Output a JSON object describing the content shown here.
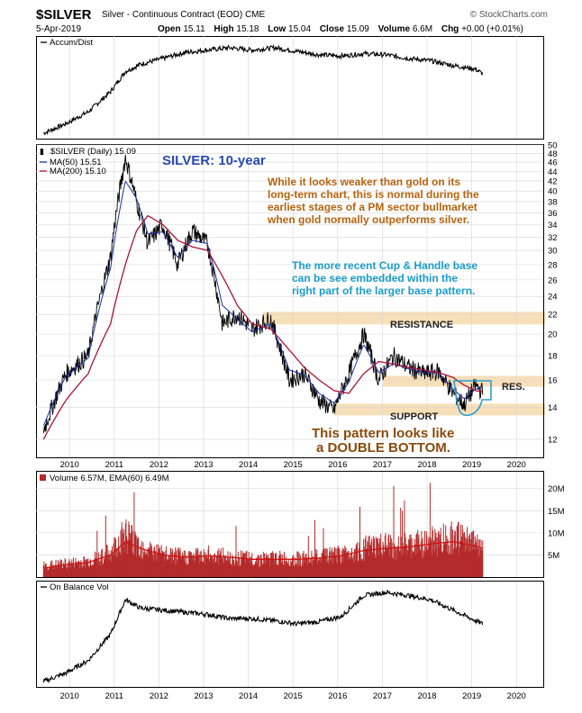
{
  "header": {
    "symbol": "$SILVER",
    "contract": "Silver - Continuous Contract (EOD) CME",
    "brand": "© StockCharts.com",
    "date": "5-Apr-2019",
    "open_label": "Open",
    "open": "15.11",
    "high_label": "High",
    "high": "15.18",
    "low_label": "Low",
    "low": "15.04",
    "close_label": "Close",
    "close": "15.09",
    "volume_label": "Volume",
    "volume": "6.6M",
    "chg_label": "Chg",
    "chg": "+0.00 (+0.01%)"
  },
  "colors": {
    "price": "#000000",
    "ma50": "#1a2fa8",
    "ma200": "#b0103a",
    "volume_bar": "#b52a2a",
    "volume_ema": "#cc1111",
    "band": "#f7dfb9",
    "title_blue": "#2a49b0",
    "note_orange": "#b8620f",
    "note_cyan": "#1b9cc9",
    "bottom_brown": "#8a4a0a",
    "handle_box": "#2b9fd4"
  },
  "panels": {
    "accum": {
      "label": "Accum/Dist"
    },
    "price": {
      "label": "$SILVER (Daily) 15.09",
      "ma50_label": "MA(50) 15.51",
      "ma200_label": "MA(200) 15.10"
    },
    "volume": {
      "label": "Volume 6.57M, EMA(60) 6.49M"
    },
    "obv": {
      "label": "On Balance Vol"
    }
  },
  "annotations": {
    "title": "SILVER: 10-year",
    "note1": [
      "While it looks weaker than gold on its",
      "long-term chart, this is normal during the",
      "earliest stages of a PM sector bullmarket",
      "when gold normally outperforms silver."
    ],
    "note2": [
      "The more recent Cup & Handle base",
      "can be see embedded within the",
      "right part of the larger base pattern."
    ],
    "resistance": "RESISTANCE",
    "res": "RES.",
    "support": "SUPPORT",
    "double_bottom": [
      "This pattern looks like",
      "a DOUBLE BOTTOM."
    ]
  },
  "chart_data": [
    {
      "type": "line",
      "title": "Accum/Dist",
      "x": [
        "2009-06",
        "2009-12",
        "2010-06",
        "2010-12",
        "2011-04",
        "2011-08",
        "2012-02",
        "2012-08",
        "2013-02",
        "2013-08",
        "2014-02",
        "2014-08",
        "2015-02",
        "2015-08",
        "2016-02",
        "2016-08",
        "2017-02",
        "2017-08",
        "2018-02",
        "2018-08",
        "2019-02",
        "2019-04"
      ],
      "series": [
        {
          "values": [
            0,
            8,
            18,
            35,
            52,
            58,
            63,
            68,
            70,
            72,
            70,
            72,
            69,
            66,
            65,
            67,
            66,
            63,
            61,
            57,
            54,
            50
          ]
        }
      ]
    },
    {
      "type": "line",
      "title": "$SILVER (Daily) 15.09",
      "ylim": [
        11,
        50
      ],
      "log_scale": true,
      "grid": true,
      "x_tick_labels": [
        "2010",
        "2011",
        "2012",
        "2013",
        "2014",
        "2015",
        "2016",
        "2017",
        "2018",
        "2019",
        "2020"
      ],
      "y_tick_labels": [
        "12",
        "14",
        "16",
        "18",
        "20",
        "22",
        "24",
        "26",
        "28",
        "30",
        "32",
        "34",
        "36",
        "38",
        "40",
        "42",
        "44",
        "46",
        "48",
        "50"
      ],
      "x": [
        "2009-06",
        "2009-12",
        "2010-06",
        "2010-12",
        "2011-04",
        "2011-07",
        "2011-10",
        "2012-02",
        "2012-06",
        "2012-10",
        "2013-02",
        "2013-06",
        "2013-10",
        "2014-02",
        "2014-07",
        "2014-12",
        "2015-04",
        "2015-08",
        "2015-12",
        "2016-04",
        "2016-08",
        "2016-12",
        "2017-04",
        "2017-08",
        "2017-12",
        "2018-04",
        "2018-08",
        "2018-11",
        "2019-02",
        "2019-04"
      ],
      "series": [
        {
          "name": "$SILVER",
          "values": [
            12.5,
            16.5,
            18.0,
            29.0,
            47.0,
            38.0,
            31.0,
            34.0,
            28.0,
            33.0,
            31.0,
            21.0,
            22.0,
            20.5,
            21.5,
            16.0,
            16.5,
            14.5,
            13.8,
            16.5,
            20.0,
            16.0,
            18.0,
            17.0,
            16.5,
            16.7,
            15.0,
            14.2,
            15.6,
            15.09
          ]
        },
        {
          "name": "MA(50)",
          "values": [
            12.8,
            16.3,
            17.8,
            27.5,
            42.0,
            38.5,
            32.5,
            32.8,
            29.0,
            31.5,
            31.0,
            23.0,
            21.5,
            20.2,
            21.0,
            16.8,
            16.4,
            15.0,
            14.3,
            15.8,
            19.0,
            16.6,
            17.3,
            16.9,
            16.6,
            16.6,
            15.3,
            14.6,
            15.3,
            15.51
          ]
        },
        {
          "name": "MA(200)",
          "values": [
            12.0,
            14.5,
            16.5,
            21.0,
            28.0,
            33.0,
            35.5,
            34.0,
            31.5,
            30.5,
            30.0,
            26.5,
            23.0,
            21.0,
            20.5,
            18.5,
            17.0,
            16.0,
            15.2,
            15.0,
            16.5,
            17.5,
            17.3,
            17.0,
            16.8,
            16.6,
            16.2,
            15.6,
            15.2,
            15.1
          ]
        }
      ],
      "resistance": 21.6,
      "support": 13.9,
      "res_band": 15.9
    },
    {
      "type": "bar",
      "title": "Volume 6.57M, EMA(60) 6.49M",
      "y_tick_labels": [
        "5M",
        "10M",
        "15M",
        "20M"
      ],
      "ylim": [
        0,
        23
      ],
      "x": [
        "2009-06",
        "2009-12",
        "2010-06",
        "2010-12",
        "2011-04",
        "2011-08",
        "2012-02",
        "2012-08",
        "2013-02",
        "2013-08",
        "2014-02",
        "2014-08",
        "2015-02",
        "2015-08",
        "2016-02",
        "2016-08",
        "2017-02",
        "2017-08",
        "2018-02",
        "2018-08",
        "2019-02",
        "2019-04"
      ],
      "series": [
        {
          "name": "Volume",
          "values": [
            2.5,
            3.0,
            3.5,
            5.5,
            10.0,
            7.0,
            5.0,
            4.5,
            5.0,
            4.5,
            4.0,
            4.2,
            4.0,
            4.5,
            5.0,
            6.5,
            7.0,
            7.0,
            8.0,
            9.0,
            7.5,
            6.6
          ]
        },
        {
          "name": "EMA(60)",
          "values": [
            2.0,
            2.8,
            3.3,
            5.0,
            8.0,
            6.5,
            5.0,
            4.5,
            4.8,
            4.5,
            4.0,
            4.0,
            4.0,
            4.3,
            4.8,
            6.0,
            6.5,
            6.8,
            7.5,
            8.0,
            7.0,
            6.49
          ]
        }
      ]
    },
    {
      "type": "line",
      "title": "On Balance Vol",
      "x_tick_labels": [
        "2010",
        "2011",
        "2012",
        "2013",
        "2014",
        "2015",
        "2016",
        "2017",
        "2018",
        "2019",
        "2020"
      ],
      "x": [
        "2009-06",
        "2009-12",
        "2010-06",
        "2010-12",
        "2011-04",
        "2011-08",
        "2012-02",
        "2012-08",
        "2013-02",
        "2013-08",
        "2014-02",
        "2014-08",
        "2015-02",
        "2015-08",
        "2016-02",
        "2016-08",
        "2017-02",
        "2017-08",
        "2018-02",
        "2018-08",
        "2019-02",
        "2019-04"
      ],
      "series": [
        {
          "values": [
            0,
            8,
            20,
            45,
            78,
            70,
            68,
            66,
            64,
            60,
            60,
            58,
            55,
            57,
            62,
            82,
            85,
            82,
            78,
            68,
            58,
            55
          ]
        }
      ]
    }
  ]
}
